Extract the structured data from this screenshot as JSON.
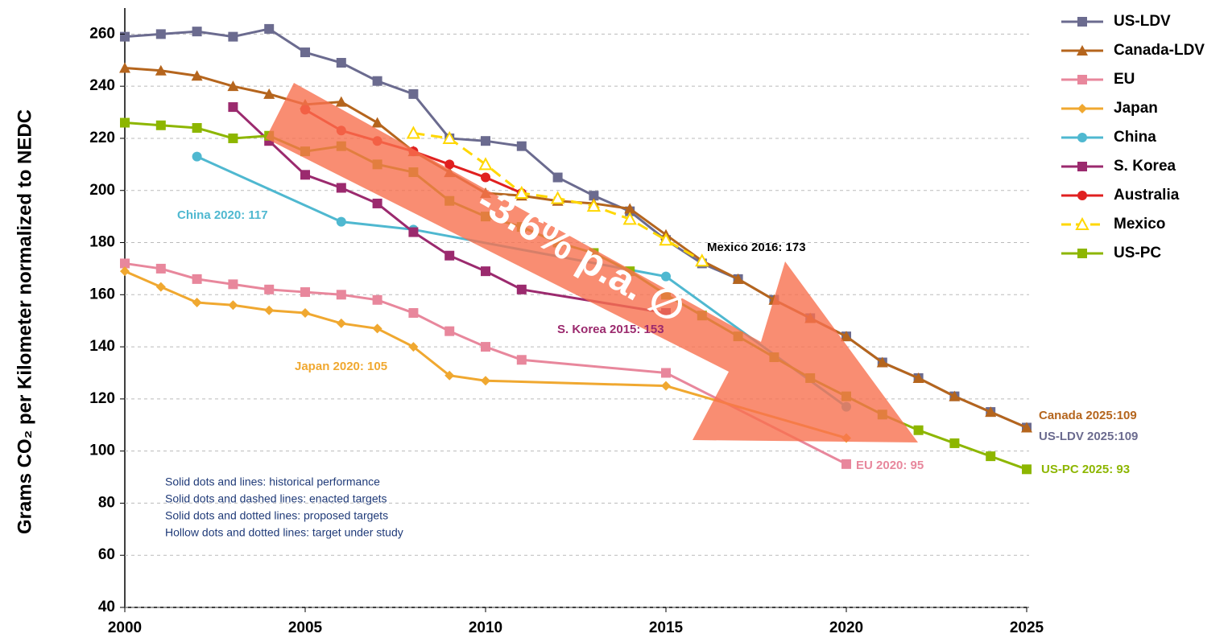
{
  "chart_data": {
    "type": "line",
    "y_label": "Grams CO₂ per Kilometer normalized to NEDC",
    "xlim": [
      2000,
      2025
    ],
    "xticks": [
      2000,
      2005,
      2010,
      2015,
      2020,
      2025
    ],
    "ylim": [
      40,
      270
    ],
    "yticks": [
      40,
      60,
      80,
      100,
      120,
      140,
      160,
      180,
      200,
      220,
      240,
      260
    ],
    "grid": true,
    "legend": "right",
    "series": [
      {
        "name": "US-LDV",
        "color": "#6b6b8f",
        "marker": "square",
        "x": [
          2000,
          2001,
          2002,
          2003,
          2004,
          2005,
          2006,
          2007,
          2008,
          2009,
          2010,
          2011,
          2012,
          2013,
          2014,
          2015,
          2016,
          2017,
          2018,
          2019,
          2020,
          2021,
          2022,
          2023,
          2024,
          2025
        ],
        "values": [
          259,
          260,
          261,
          259,
          262,
          253,
          249,
          242,
          237,
          220,
          219,
          217,
          205,
          198,
          192,
          181,
          172,
          166,
          158,
          151,
          144,
          134,
          128,
          121,
          115,
          109
        ]
      },
      {
        "name": "Canada-LDV",
        "color": "#b5651d",
        "marker": "triangle",
        "x": [
          2000,
          2001,
          2002,
          2003,
          2004,
          2005,
          2006,
          2007,
          2008,
          2009,
          2010,
          2011,
          2012,
          2013,
          2014,
          2015,
          2016,
          2017,
          2018,
          2019,
          2020,
          2021,
          2022,
          2023,
          2024,
          2025
        ],
        "values": [
          247,
          246,
          244,
          240,
          237,
          233,
          234,
          226,
          215,
          207,
          199,
          198,
          196,
          195,
          193,
          183,
          173,
          166,
          158,
          151,
          144,
          134,
          128,
          121,
          115,
          109
        ]
      },
      {
        "name": "EU",
        "color": "#e8879c",
        "marker": "square",
        "x": [
          2000,
          2001,
          2002,
          2003,
          2004,
          2005,
          2006,
          2007,
          2008,
          2009,
          2010,
          2011,
          2015,
          2020
        ],
        "values": [
          172,
          170,
          166,
          164,
          162,
          161,
          160,
          158,
          153,
          146,
          140,
          135,
          130,
          95
        ]
      },
      {
        "name": "Japan",
        "color": "#f0a830",
        "marker": "star",
        "x": [
          2000,
          2001,
          2002,
          2003,
          2004,
          2005,
          2006,
          2007,
          2008,
          2009,
          2010,
          2015,
          2020
        ],
        "values": [
          169,
          163,
          157,
          156,
          154,
          153,
          149,
          147,
          140,
          129,
          127,
          125,
          105
        ]
      },
      {
        "name": "China",
        "color": "#4fb8d0",
        "marker": "circle",
        "x": [
          2002,
          2006,
          2008,
          2015,
          2020
        ],
        "values": [
          213,
          188,
          185,
          167,
          117
        ]
      },
      {
        "name": "S. Korea",
        "color": "#9b2a6e",
        "marker": "square",
        "x": [
          2003,
          2004,
          2005,
          2006,
          2007,
          2008,
          2009,
          2010,
          2011,
          2015
        ],
        "values": [
          232,
          219,
          206,
          201,
          195,
          184,
          175,
          169,
          162,
          153
        ]
      },
      {
        "name": "Australia",
        "color": "#e02020",
        "marker": "circle",
        "x": [
          2005,
          2006,
          2007,
          2008,
          2009,
          2010,
          2011
        ],
        "values": [
          231,
          223,
          219,
          215,
          210,
          205,
          199
        ]
      },
      {
        "name": "Mexico",
        "color": "#ffd700",
        "marker": "hollow-triangle",
        "dashed": true,
        "x": [
          2008,
          2009,
          2010,
          2011,
          2012,
          2013,
          2014,
          2015,
          2016
        ],
        "values": [
          222,
          220,
          210,
          199,
          197,
          194,
          189,
          181,
          173
        ]
      },
      {
        "name": "US-PC",
        "color": "#8db600",
        "marker": "square",
        "x": [
          2000,
          2001,
          2002,
          2003,
          2004,
          2005,
          2006,
          2007,
          2008,
          2009,
          2010,
          2011,
          2012,
          2013,
          2014,
          2015,
          2016,
          2017,
          2018,
          2019,
          2020,
          2021,
          2022,
          2023,
          2024,
          2025
        ],
        "values": [
          226,
          225,
          224,
          220,
          221,
          215,
          217,
          210,
          207,
          196,
          190,
          186,
          180,
          176,
          169,
          160,
          152,
          144,
          136,
          128,
          121,
          114,
          108,
          103,
          98,
          93
        ]
      }
    ],
    "annotations": [
      {
        "text": "China 2020: 117",
        "color": "#4fb8d0"
      },
      {
        "text": "Mexico 2016: 173",
        "color": "#000000"
      },
      {
        "text": "S. Korea 2015: 153",
        "color": "#9b2a6e"
      },
      {
        "text": "Japan 2020: 105",
        "color": "#f0a830"
      },
      {
        "text": "EU 2020: 95",
        "color": "#e8879c"
      },
      {
        "text": "Canada 2025:109",
        "color": "#b5651d"
      },
      {
        "text": "US-LDV 2025:109",
        "color": "#6b6b8f"
      },
      {
        "text": "US-PC 2025: 93",
        "color": "#8db600"
      }
    ],
    "trend_label": "-3.6% p.a. ∅",
    "notes": [
      "Solid dots and lines: historical performance",
      "Solid dots and dashed lines: enacted targets",
      "Solid dots and dotted lines: proposed targets",
      "Hollow dots and dotted lines: target under study"
    ]
  }
}
